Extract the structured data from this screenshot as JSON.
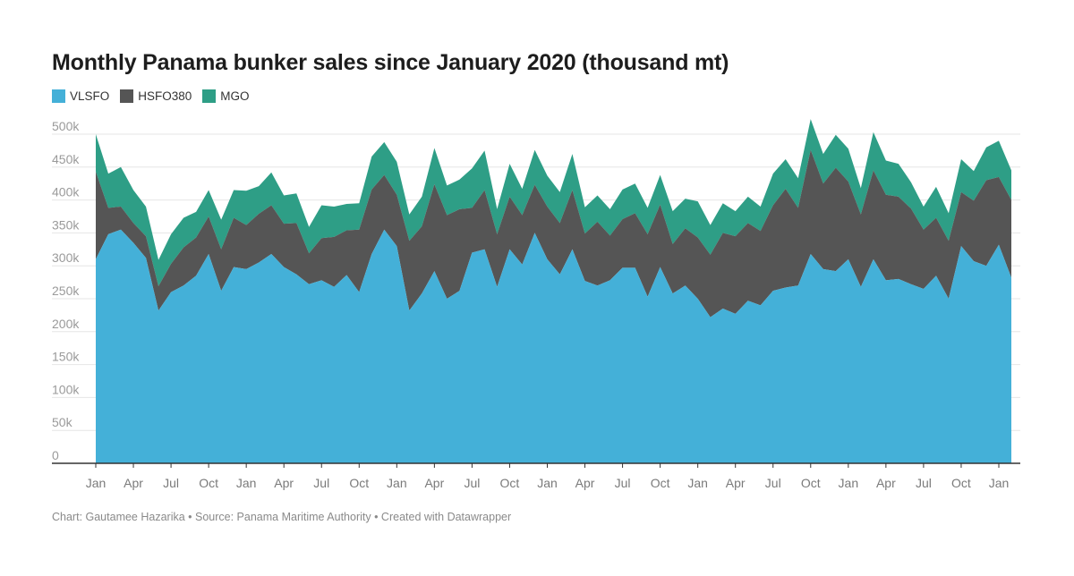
{
  "title": "Monthly Panama bunker sales since January 2020 (thousand mt)",
  "footer": "Chart: Gautamee Hazarika • Source: Panama Maritime Authority • Created with Datawrapper",
  "colors": {
    "VLSFO": "#44b0d8",
    "HSFO380": "#555555",
    "MGO": "#2e9e86",
    "grid": "#e6e6e6",
    "axis": "#333333"
  },
  "chart_data": {
    "type": "area",
    "stacked": true,
    "title": "Monthly Panama bunker sales since January 2020 (thousand mt)",
    "x_start": "2020-01",
    "x_end": "2024-01",
    "x_tick_labels": [
      "Jan",
      "Apr",
      "Jul",
      "Oct",
      "Jan",
      "Apr",
      "Jul",
      "Oct",
      "Jan",
      "Apr",
      "Jul",
      "Oct",
      "Jan",
      "Apr",
      "Jul",
      "Oct",
      "Jan",
      "Apr",
      "Jul",
      "Oct",
      "Jan",
      "Apr",
      "Jul",
      "Oct",
      "Jan"
    ],
    "y_ticks": [
      "0",
      "50k",
      "100k",
      "150k",
      "200k",
      "250k",
      "300k",
      "350k",
      "400k",
      "450k",
      "500k"
    ],
    "ylim": [
      0,
      500000
    ],
    "grid": true,
    "legend_position": "top-left",
    "series": [
      {
        "name": "VLSFO",
        "values": [
          310000,
          348000,
          355000,
          335000,
          312000,
          232000,
          260000,
          270000,
          285000,
          318000,
          262000,
          298000,
          295000,
          305000,
          318000,
          298000,
          287000,
          272000,
          278000,
          268000,
          286000,
          260000,
          318000,
          355000,
          330000,
          232000,
          258000,
          292000,
          250000,
          262000,
          320000,
          325000,
          268000,
          325000,
          302000,
          350000,
          310000,
          287000,
          325000,
          277000,
          270000,
          278000,
          297000,
          297000,
          253000,
          298000,
          258000,
          270000,
          250000,
          222000,
          235000,
          227000,
          247000,
          240000,
          262000,
          267000,
          270000,
          318000,
          295000,
          292000,
          310000,
          268000,
          310000,
          278000,
          280000,
          272000,
          265000,
          285000,
          250000,
          330000,
          307000,
          300000,
          332000,
          282000
        ]
      },
      {
        "name": "HSFO380",
        "values": [
          133000,
          40000,
          35000,
          30000,
          33000,
          37000,
          43000,
          58000,
          58000,
          57000,
          63000,
          75000,
          67000,
          74000,
          74000,
          66000,
          78000,
          47000,
          64000,
          76000,
          68000,
          95000,
          98000,
          83000,
          78000,
          106000,
          102000,
          132000,
          127000,
          124000,
          68000,
          90000,
          80000,
          80000,
          75000,
          73000,
          80000,
          78000,
          90000,
          72000,
          97000,
          68000,
          74000,
          83000,
          95000,
          95000,
          75000,
          87000,
          93000,
          95000,
          115000,
          118000,
          118000,
          113000,
          130000,
          150000,
          118000,
          158000,
          130000,
          157000,
          118000,
          110000,
          135000,
          130000,
          125000,
          115000,
          90000,
          88000,
          88000,
          82000,
          92000,
          130000,
          103000,
          118000
        ]
      },
      {
        "name": "MGO",
        "values": [
          57000,
          52000,
          60000,
          50000,
          45000,
          40000,
          45000,
          45000,
          39000,
          40000,
          45000,
          42000,
          52000,
          42000,
          50000,
          43000,
          45000,
          40000,
          50000,
          46000,
          40000,
          40000,
          50000,
          50000,
          50000,
          40000,
          45000,
          55000,
          45000,
          45000,
          60000,
          60000,
          38000,
          50000,
          40000,
          53000,
          47000,
          47000,
          55000,
          40000,
          40000,
          40000,
          45000,
          45000,
          40000,
          45000,
          50000,
          45000,
          55000,
          45000,
          45000,
          38000,
          40000,
          37000,
          48000,
          45000,
          45000,
          47000,
          45000,
          50000,
          50000,
          40000,
          58000,
          52000,
          50000,
          40000,
          35000,
          47000,
          42000,
          50000,
          45000,
          50000,
          55000,
          45000
        ]
      }
    ]
  }
}
